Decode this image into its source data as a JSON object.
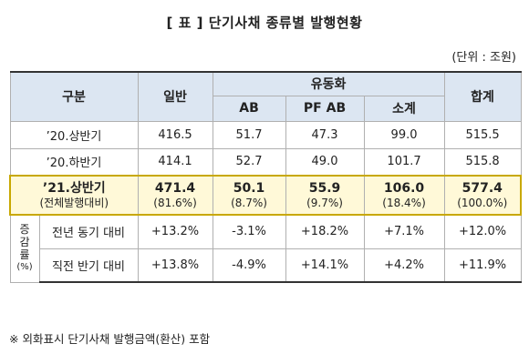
{
  "title": "[ 표 ] 단기사채 종류별 발행현황",
  "unit": "(단위 : 조원)",
  "header": {
    "gubun": "구분",
    "general": "일반",
    "liquidity": "유동화",
    "ab": "AB",
    "pfab": "PF AB",
    "subtotal": "소계",
    "total": "합계"
  },
  "rows": [
    {
      "label": "’20.상반기",
      "general": "416.5",
      "ab": "51.7",
      "pfab": "47.3",
      "subtotal": "99.0",
      "total": "515.5"
    },
    {
      "label": "’20.하반기",
      "general": "414.1",
      "ab": "52.7",
      "pfab": "49.0",
      "subtotal": "101.7",
      "total": "515.8"
    }
  ],
  "highlight": {
    "label": "’21.상반기",
    "sublabel": "(전체발행대비)",
    "general": "471.4",
    "general_pct": "(81.6%)",
    "ab": "50.1",
    "ab_pct": "(8.7%)",
    "pfab": "55.9",
    "pfab_pct": "(9.7%)",
    "subtotal": "106.0",
    "subtotal_pct": "(18.4%)",
    "total": "577.4",
    "total_pct": "(100.0%)"
  },
  "change": {
    "vertical_label": [
      "증",
      "감",
      "률",
      "(%)"
    ],
    "rows": [
      {
        "label": "전년 동기 대비",
        "general": "+13.2%",
        "ab": "-3.1%",
        "pfab": "+18.2%",
        "subtotal": "+7.1%",
        "total": "+12.0%"
      },
      {
        "label": "직전 반기 대비",
        "general": "+13.8%",
        "ab": "-4.9%",
        "pfab": "+14.1%",
        "subtotal": "+4.2%",
        "total": "+11.9%"
      }
    ]
  },
  "footnote": "※ 외화표시 단기사채 발행금액(환산) 포함"
}
